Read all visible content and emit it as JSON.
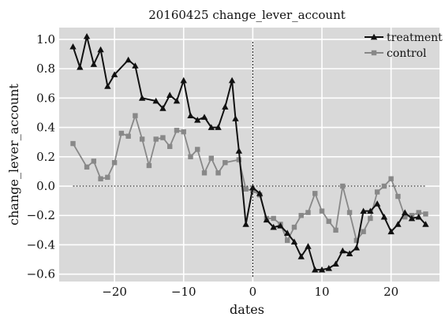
{
  "chart_data": {
    "type": "line",
    "title": "20160425 change_lever_account",
    "xlabel": "dates",
    "ylabel": "change_lever_account",
    "xlim": [
      -28,
      27
    ],
    "ylim": [
      -0.65,
      1.08
    ],
    "xticks": [
      -20,
      -10,
      0,
      10,
      20
    ],
    "xtick_labels": [
      "−20",
      "−10",
      "0",
      "10",
      "20"
    ],
    "yticks": [
      1.0,
      0.8,
      0.6,
      0.4,
      0.2,
      0.0,
      -0.2,
      -0.4,
      -0.6
    ],
    "ytick_labels": [
      "1.0",
      "0.8",
      "0.6",
      "0.4",
      "0.2",
      "0.0",
      "−0.2",
      "−0.4",
      "−0.6"
    ],
    "grid": true,
    "background": "#d9d9d9",
    "legend_position": "top-right",
    "reference_lines": [
      {
        "orientation": "horizontal",
        "value": 0.0,
        "from": -26,
        "to": 25,
        "style": "dotted"
      },
      {
        "orientation": "vertical",
        "value": 0,
        "style": "dotted"
      }
    ],
    "series": [
      {
        "name": "treatment",
        "color": "#111111",
        "marker": "triangle",
        "x": [
          -26,
          -25,
          -24,
          -23,
          -22,
          -21,
          -20,
          -18,
          -17,
          -16,
          -14,
          -13,
          -12,
          -11,
          -10,
          -9,
          -8,
          -7,
          -6,
          -5,
          -4,
          -3,
          -2.5,
          -2,
          -1,
          0,
          1,
          2,
          3,
          4,
          5,
          6,
          7,
          8,
          9,
          10,
          11,
          12,
          13,
          14,
          15,
          16,
          17,
          18,
          19,
          20,
          21,
          22,
          23,
          24,
          25
        ],
        "y": [
          0.95,
          0.81,
          1.02,
          0.83,
          0.93,
          0.68,
          0.76,
          0.86,
          0.82,
          0.6,
          0.58,
          0.53,
          0.62,
          0.58,
          0.72,
          0.48,
          0.45,
          0.47,
          0.4,
          0.4,
          0.54,
          0.72,
          0.46,
          0.24,
          -0.26,
          -0.01,
          -0.05,
          -0.23,
          -0.28,
          -0.27,
          -0.32,
          -0.38,
          -0.48,
          -0.41,
          -0.57,
          -0.57,
          -0.56,
          -0.53,
          -0.44,
          -0.46,
          -0.42,
          -0.17,
          -0.17,
          -0.12,
          -0.21,
          -0.31,
          -0.26,
          -0.18,
          -0.22,
          -0.21,
          -0.26
        ]
      },
      {
        "name": "control",
        "color": "#888888",
        "marker": "square",
        "x": [
          -26,
          -24,
          -23,
          -22,
          -21,
          -20,
          -19,
          -18,
          -17,
          -16,
          -15,
          -14,
          -13,
          -12,
          -11,
          -10,
          -9,
          -8,
          -7,
          -6,
          -5,
          -4,
          -2,
          -1,
          0,
          1,
          2,
          3,
          4,
          5,
          6,
          7,
          8,
          9,
          10,
          11,
          12,
          13,
          14,
          15,
          16,
          17,
          18,
          19,
          20,
          21,
          22,
          23,
          24,
          25
        ],
        "y": [
          0.29,
          0.13,
          0.17,
          0.05,
          0.06,
          0.16,
          0.36,
          0.34,
          0.48,
          0.32,
          0.14,
          0.32,
          0.33,
          0.27,
          0.38,
          0.37,
          0.2,
          0.25,
          0.09,
          0.19,
          0.09,
          0.16,
          0.18,
          -0.02,
          -0.03,
          -0.06,
          -0.22,
          -0.22,
          -0.26,
          -0.37,
          -0.28,
          -0.2,
          -0.18,
          -0.05,
          -0.17,
          -0.24,
          -0.3,
          0.0,
          -0.18,
          -0.37,
          -0.31,
          -0.22,
          -0.04,
          0.0,
          0.05,
          -0.07,
          -0.21,
          -0.2,
          -0.18,
          -0.19
        ]
      }
    ]
  }
}
